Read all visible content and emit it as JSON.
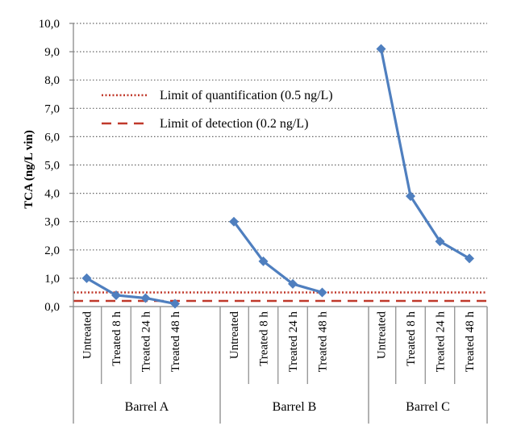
{
  "chart_data": {
    "type": "line",
    "ylabel": "TCA (ng/L vin)",
    "ylim": [
      0,
      10
    ],
    "yticks": [
      "0,0",
      "1,0",
      "2,0",
      "3,0",
      "4,0",
      "5,0",
      "6,0",
      "7,0",
      "8,0",
      "9,0",
      "10,0"
    ],
    "grid": "horizontal dotted",
    "legend_position": "top-left",
    "groups": [
      {
        "name": "Barrel A",
        "categories": [
          "Untreated",
          "Treated 8 h",
          "Treated 24 h",
          "Treated 48 h"
        ],
        "values": [
          1.0,
          0.4,
          0.3,
          0.1
        ]
      },
      {
        "name": "Barrel B",
        "categories": [
          "Untreated",
          "Treated 8 h",
          "Treated 24 h",
          "Treated 48 h"
        ],
        "values": [
          3.0,
          1.6,
          0.8,
          0.5
        ]
      },
      {
        "name": "Barrel C",
        "categories": [
          "Untreated",
          "Treated 8 h",
          "Treated 24 h",
          "Treated 48 h"
        ],
        "values": [
          9.1,
          3.9,
          2.3,
          1.7
        ]
      }
    ],
    "reference_lines": [
      {
        "label": "Limit of quantification (0.5 ng/L)",
        "value": 0.5,
        "style": "dotted",
        "color": "#c0392b"
      },
      {
        "label": "Limit of detection (0.2 ng/L)",
        "value": 0.2,
        "style": "dashed",
        "color": "#c0392b"
      }
    ],
    "series_color": "#4f7fbf"
  }
}
